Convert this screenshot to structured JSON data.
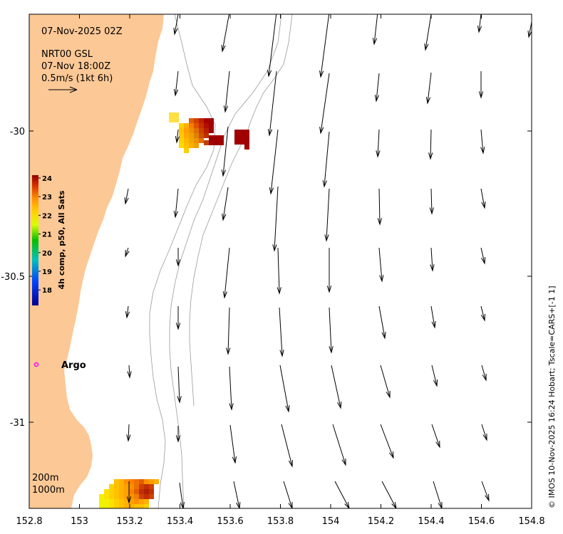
{
  "map": {
    "timestamp": "07-Nov-2025 02Z",
    "product": "NRT00 GSL",
    "product_time": "07-Nov 18:00Z",
    "scale_label": "0.5m/s (1kt 6h)",
    "credit": "© IMOS 10-Nov-2025 16:24 Hobart; Tscale=CARS+[-1 1]",
    "argo_label": "Argo",
    "depth_labels": [
      "200m",
      "1000m"
    ],
    "x_ticks": [
      "152.8",
      "153",
      "153.2",
      "153.4",
      "153.6",
      "153.8",
      "154",
      "154.2",
      "154.4",
      "154.6",
      "154.8"
    ],
    "y_ticks": [
      "-30",
      "-30.5",
      "-31"
    ],
    "colorbar": {
      "title": "4h comp, p50, All Sats",
      "ticks": [
        "24",
        "23",
        "22",
        "21",
        "20",
        "19",
        "18"
      ]
    },
    "colors": {
      "land": "#fcc896",
      "vector": "#000000",
      "argo": "#ff00ff",
      "isobath": "#9a9a9a"
    }
  }
}
